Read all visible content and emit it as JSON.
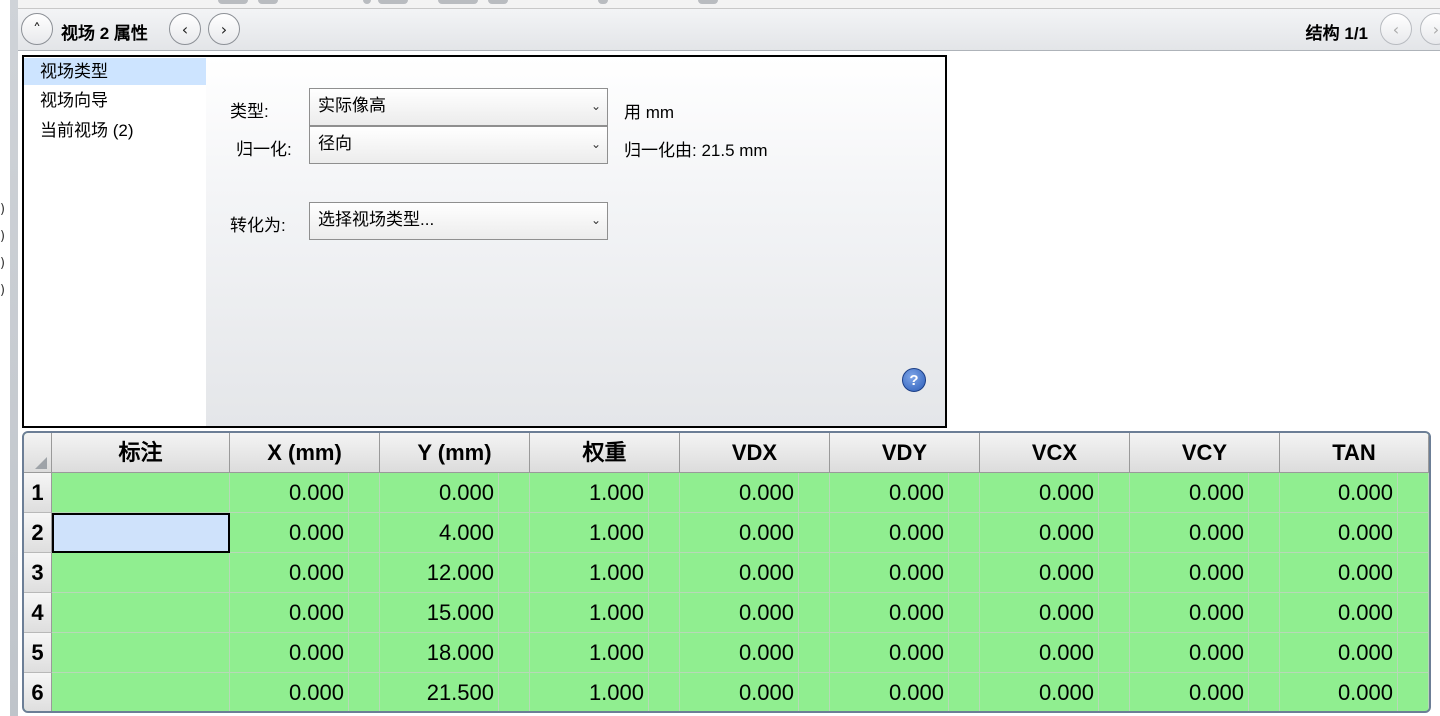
{
  "header": {
    "title": "视场  2 属性",
    "structure": "结构 1/1"
  },
  "nav": {
    "items": [
      {
        "label": "视场类型",
        "selected": true
      },
      {
        "label": "视场向导",
        "selected": false
      },
      {
        "label": "当前视场 (2)",
        "selected": false
      }
    ]
  },
  "form": {
    "type_label": "类型:",
    "type_value": "实际像高",
    "type_unit": "用 mm",
    "norm_label": "归一化:",
    "norm_value": "径向",
    "norm_info": "归一化由: 21.5 mm",
    "convert_label": "转化为:",
    "convert_value": "选择视场类型..."
  },
  "table": {
    "headers": [
      "标注",
      "X (mm)",
      "Y (mm)",
      "权重",
      "VDX",
      "VDY",
      "VCX",
      "VCY",
      "TAN"
    ],
    "rows": [
      {
        "n": "1",
        "cells": [
          "",
          "0.000",
          "0.000",
          "1.000",
          "0.000",
          "0.000",
          "0.000",
          "0.000",
          "0.000"
        ]
      },
      {
        "n": "2",
        "cells": [
          "",
          "0.000",
          "4.000",
          "1.000",
          "0.000",
          "0.000",
          "0.000",
          "0.000",
          "0.000"
        ]
      },
      {
        "n": "3",
        "cells": [
          "",
          "0.000",
          "12.000",
          "1.000",
          "0.000",
          "0.000",
          "0.000",
          "0.000",
          "0.000"
        ]
      },
      {
        "n": "4",
        "cells": [
          "",
          "0.000",
          "15.000",
          "1.000",
          "0.000",
          "0.000",
          "0.000",
          "0.000",
          "0.000"
        ]
      },
      {
        "n": "5",
        "cells": [
          "",
          "0.000",
          "18.000",
          "1.000",
          "0.000",
          "0.000",
          "0.000",
          "0.000",
          "0.000"
        ]
      },
      {
        "n": "6",
        "cells": [
          "",
          "0.000",
          "21.500",
          "1.000",
          "0.000",
          "0.000",
          "0.000",
          "0.000",
          "0.000"
        ]
      }
    ],
    "active_row": 1,
    "active_col": 0
  },
  "icons": {
    "collapse": "chevron-up-icon",
    "prev": "chevron-left-icon",
    "next": "chevron-right-icon",
    "dropdown": "chevron-down-icon",
    "help": "help-icon"
  },
  "colors": {
    "grid_fill": "#90ee90",
    "selection": "#cde4ff",
    "help_blue": "#2a5cb8"
  }
}
